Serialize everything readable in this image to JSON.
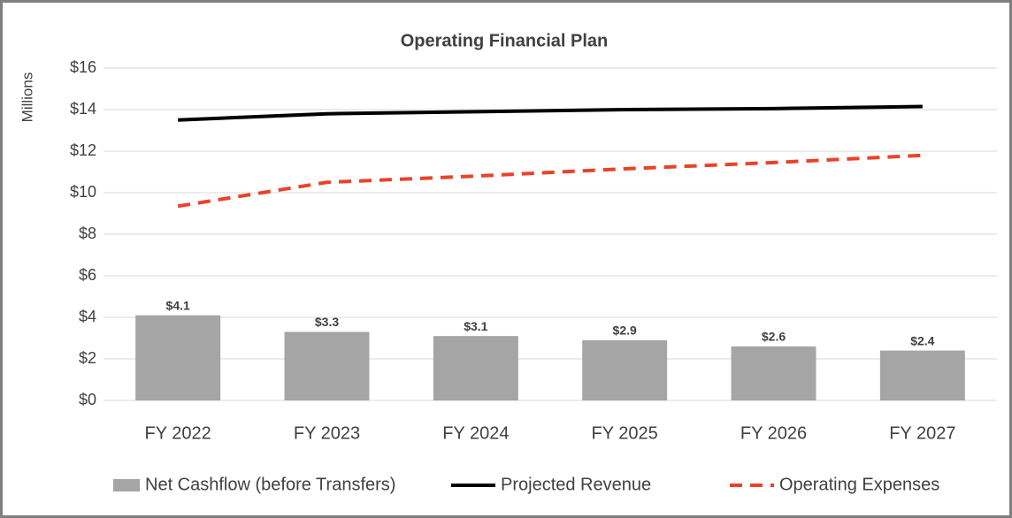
{
  "chart_data": {
    "type": "bar",
    "title": "Operating Financial Plan",
    "y_label": "Millions",
    "categories": [
      "FY 2022",
      "FY 2023",
      "FY 2024",
      "FY 2025",
      "FY 2026",
      "FY 2027"
    ],
    "series": [
      {
        "name": "Net Cashflow (before Transfers)",
        "type": "bar",
        "color": "#a5a5a5",
        "values": [
          4.1,
          3.3,
          3.1,
          2.9,
          2.6,
          2.4
        ],
        "value_labels": [
          "$4.1",
          "$3.3",
          "$3.1",
          "$2.9",
          "$2.6",
          "$2.4"
        ]
      },
      {
        "name": "Projected Revenue",
        "type": "line",
        "line_style": "solid",
        "color": "#000000",
        "values": [
          13.5,
          13.8,
          13.9,
          14.0,
          14.05,
          14.15
        ]
      },
      {
        "name": "Operating Expenses",
        "type": "line",
        "line_style": "dashed",
        "color": "#e8432a",
        "values": [
          9.35,
          10.5,
          10.8,
          11.15,
          11.45,
          11.8
        ]
      }
    ],
    "ylim": [
      0,
      16
    ],
    "yticks": [
      {
        "value": 0,
        "label": "$0"
      },
      {
        "value": 2,
        "label": "$2"
      },
      {
        "value": 4,
        "label": "$4"
      },
      {
        "value": 6,
        "label": "$6"
      },
      {
        "value": 8,
        "label": "$8"
      },
      {
        "value": 10,
        "label": "$10"
      },
      {
        "value": 12,
        "label": "$12"
      },
      {
        "value": 14,
        "label": "$14"
      },
      {
        "value": 16,
        "label": "$16"
      }
    ],
    "grid": true,
    "legend": "bottom"
  }
}
